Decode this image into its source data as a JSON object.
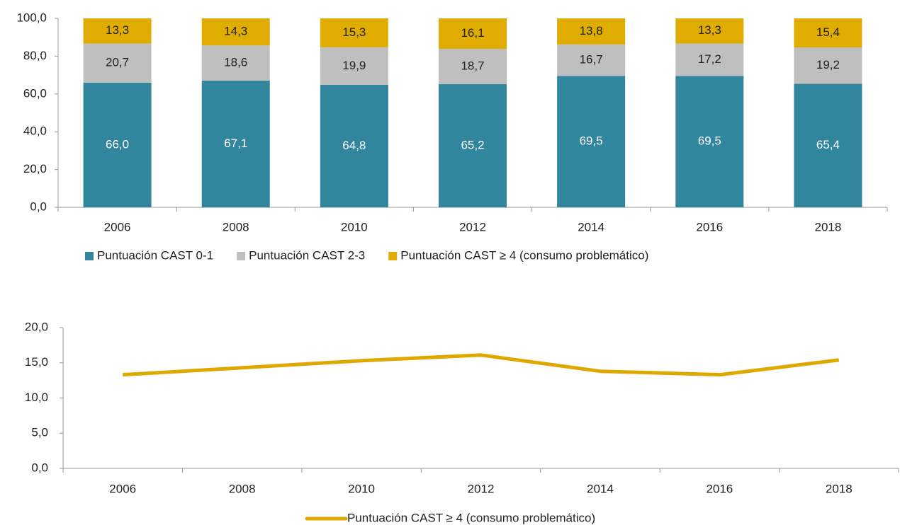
{
  "chart_data": [
    {
      "type": "bar",
      "stacked": true,
      "categories": [
        "2006",
        "2008",
        "2010",
        "2012",
        "2014",
        "2016",
        "2018"
      ],
      "series": [
        {
          "name": "Puntuación CAST 0-1",
          "color": "#31859c",
          "values": [
            66.0,
            67.1,
            64.8,
            65.2,
            69.5,
            69.5,
            65.4
          ],
          "value_labels": [
            "66,0",
            "67,1",
            "64,8",
            "65,2",
            "69,5",
            "69,5",
            "65,4"
          ]
        },
        {
          "name": "Puntuación CAST 2-3",
          "color": "#bfbfbf",
          "values": [
            20.7,
            18.6,
            19.9,
            18.7,
            16.7,
            17.2,
            19.2
          ],
          "value_labels": [
            "20,7",
            "18,6",
            "19,9",
            "18,7",
            "16,7",
            "17,2",
            "19,2"
          ]
        },
        {
          "name": "Puntuación CAST ≥ 4 (consumo problemático)",
          "color": "#e0ac00",
          "values": [
            13.3,
            14.3,
            15.3,
            16.1,
            13.8,
            13.3,
            15.4
          ],
          "value_labels": [
            "13,3",
            "14,3",
            "15,3",
            "16,1",
            "13,8",
            "13,3",
            "15,4"
          ]
        }
      ],
      "ylim": [
        0,
        100
      ],
      "yticks": [
        {
          "value": 0,
          "label": "0,0"
        },
        {
          "value": 20,
          "label": "20,0"
        },
        {
          "value": 40,
          "label": "40,0"
        },
        {
          "value": 60,
          "label": "60,0"
        },
        {
          "value": 80,
          "label": "80,0"
        },
        {
          "value": 100,
          "label": "100,0"
        }
      ],
      "legend": "bottom"
    },
    {
      "type": "line",
      "categories": [
        "2006",
        "2008",
        "2010",
        "2012",
        "2014",
        "2016",
        "2018"
      ],
      "series": [
        {
          "name": "Puntuación CAST ≥ 4 (consumo problemático)",
          "color": "#dfa800",
          "values": [
            13.3,
            14.3,
            15.3,
            16.1,
            13.8,
            13.3,
            15.4
          ]
        }
      ],
      "ylim": [
        0,
        20
      ],
      "yticks": [
        {
          "value": 0,
          "label": "0,0"
        },
        {
          "value": 5,
          "label": "5,0"
        },
        {
          "value": 10,
          "label": "10,0"
        },
        {
          "value": 15,
          "label": "15,0"
        },
        {
          "value": 20,
          "label": "20,0"
        }
      ],
      "legend": "bottom"
    }
  ]
}
